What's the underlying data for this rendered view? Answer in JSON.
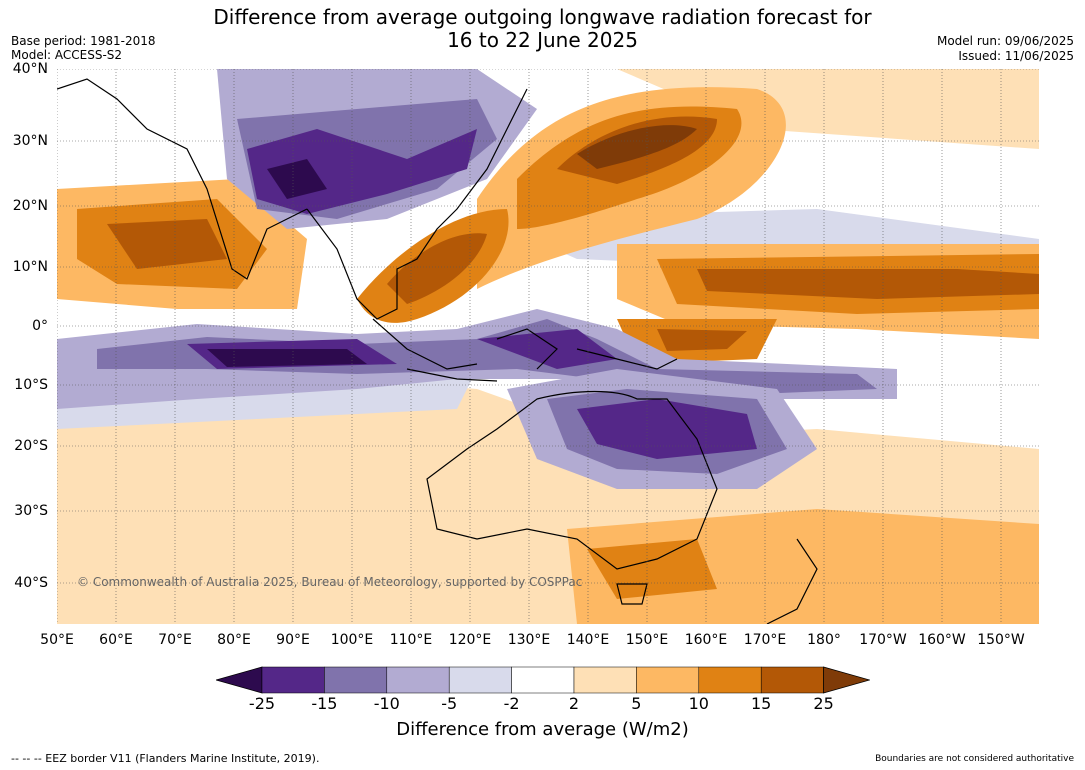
{
  "header": {
    "title_line1": "Difference from average outgoing longwave radiation forecast for",
    "title_line2": "16 to 22 June 2025",
    "base_period": "Base period: 1981-2018",
    "model": "Model: ACCESS-S2",
    "model_run": "Model run: 09/06/2025",
    "issued": "Issued: 11/06/2025"
  },
  "axes": {
    "lat_labels": [
      "40°N",
      "30°N",
      "20°N",
      "10°N",
      "0°",
      "10°S",
      "20°S",
      "30°S",
      "40°S"
    ],
    "lon_labels": [
      "50°E",
      "60°E",
      "70°E",
      "80°E",
      "90°E",
      "100°E",
      "110°E",
      "120°E",
      "130°E",
      "140°E",
      "150°E",
      "160°E",
      "170°E",
      "180°",
      "170°W",
      "160°W",
      "150°W"
    ]
  },
  "copyright": "© Commonwealth of Australia 2025, Bureau of Meteorology, supported by COSPPac",
  "colorbar": {
    "ticks": [
      "-25",
      "-15",
      "-10",
      "-5",
      "-2",
      "2",
      "5",
      "10",
      "15",
      "25"
    ],
    "colors": [
      "#2d0a4e",
      "#542788",
      "#8073ac",
      "#b2abd2",
      "#d8daeb",
      "#ffffff",
      "#fee0b6",
      "#fdb863",
      "#e08214",
      "#b35806",
      "#7f3b08"
    ],
    "title": "Difference from average (W/m2)"
  },
  "footer": {
    "eez_note": "-- -- -- EEZ border V11 (Flanders Marine Institute, 2019).",
    "boundaries_note": "Boundaries are not considered authoritative"
  }
}
